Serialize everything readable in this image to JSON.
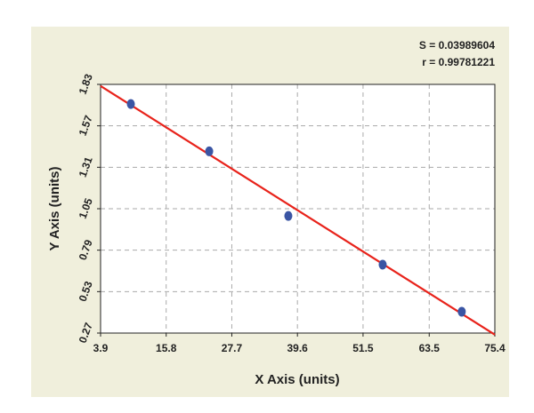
{
  "chart_data": {
    "type": "scatter",
    "x_label": "X Axis (units)",
    "y_label": "Y Axis (units)",
    "annotations": [
      "S = 0.03989604",
      "r = 0.99781221"
    ],
    "series": [
      {
        "type": "scatter",
        "color": "#3a55a4",
        "x": [
          9.39,
          23.6,
          37.95,
          55.06,
          69.4
        ],
        "values": [
          1.707,
          1.41,
          1.005,
          0.699,
          0.404
        ]
      },
      {
        "type": "line",
        "color": "#e8231b",
        "x": [
          3.9,
          75.4
        ],
        "values": [
          1.82,
          0.26
        ]
      }
    ],
    "xlim": [
      3.9,
      75.4
    ],
    "xticks": [
      3.9,
      15.8,
      27.7,
      39.6,
      51.5,
      63.5,
      75.4
    ],
    "ylim": [
      0.27,
      1.83
    ],
    "yticks": [
      0.27,
      0.53,
      0.79,
      1.05,
      1.31,
      1.57,
      1.83
    ],
    "grid": true
  }
}
